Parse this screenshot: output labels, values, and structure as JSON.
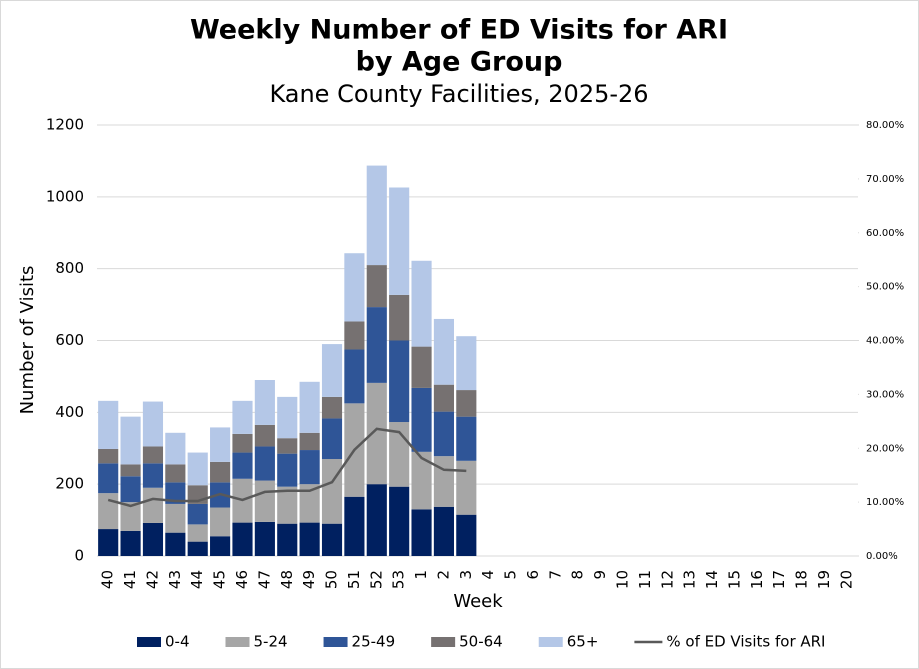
{
  "chart_data": {
    "type": "bar",
    "stacked": true,
    "title": [
      "Weekly Number of ED Visits for ARI",
      "by Age Group"
    ],
    "subtitle": "Kane County Facilities, 2025-26",
    "x_label": "Week",
    "y_label": "Number of Visits",
    "categories": [
      "40",
      "41",
      "42",
      "43",
      "44",
      "45",
      "46",
      "47",
      "48",
      "49",
      "50",
      "51",
      "52",
      "53",
      "1",
      "2",
      "3",
      "4",
      "5",
      "6",
      "7",
      "8",
      "9",
      "10",
      "11",
      "12",
      "13",
      "14",
      "15",
      "16",
      "17",
      "18",
      "19",
      "20"
    ],
    "ylim": [
      0,
      1200
    ],
    "yticks": [
      0,
      200,
      400,
      600,
      800,
      1000,
      1200
    ],
    "y2lim": [
      0,
      80
    ],
    "y2ticks": [
      {
        "value": 0,
        "label": "0.00%"
      },
      {
        "value": 10,
        "label": "10.00%"
      },
      {
        "value": 20,
        "label": "20.00%"
      },
      {
        "value": 30,
        "label": "30.00%"
      },
      {
        "value": 40,
        "label": "40.00%"
      },
      {
        "value": 50,
        "label": "50.00%"
      },
      {
        "value": 60,
        "label": "60.00%"
      },
      {
        "value": 70,
        "label": "70.00%"
      },
      {
        "value": 80,
        "label": "80.00%"
      }
    ],
    "grid": true,
    "legend": "bottom",
    "series": [
      {
        "name": "0-4",
        "color": "#002060",
        "values": [
          75,
          70,
          92,
          65,
          40,
          55,
          93,
          95,
          90,
          93,
          90,
          165,
          200,
          193,
          130,
          137,
          115,
          null,
          null,
          null,
          null,
          null,
          null,
          null,
          null,
          null,
          null,
          null,
          null,
          null,
          null,
          null,
          null,
          null
        ]
      },
      {
        "name": "5-24",
        "color": "#a6a6a6",
        "values": [
          100,
          80,
          98,
          80,
          48,
          80,
          122,
          115,
          103,
          107,
          180,
          260,
          282,
          180,
          160,
          141,
          150,
          null,
          null,
          null,
          null,
          null,
          null,
          null,
          null,
          null,
          null,
          null,
          null,
          null,
          null,
          null,
          null,
          null
        ]
      },
      {
        "name": "25-49",
        "color": "#2f5597",
        "values": [
          83,
          72,
          68,
          60,
          57,
          70,
          73,
          95,
          92,
          95,
          113,
          150,
          211,
          227,
          178,
          124,
          123,
          null,
          null,
          null,
          null,
          null,
          null,
          null,
          null,
          null,
          null,
          null,
          null,
          null,
          null,
          null,
          null,
          null
        ]
      },
      {
        "name": "50-64",
        "color": "#767171",
        "values": [
          40,
          33,
          47,
          50,
          52,
          57,
          52,
          60,
          43,
          48,
          60,
          78,
          117,
          127,
          115,
          75,
          74,
          null,
          null,
          null,
          null,
          null,
          null,
          null,
          null,
          null,
          null,
          null,
          null,
          null,
          null,
          null,
          null,
          null
        ]
      },
      {
        "name": "65+",
        "color": "#b4c7e7",
        "values": [
          134,
          133,
          125,
          88,
          91,
          96,
          92,
          125,
          115,
          142,
          147,
          190,
          277,
          299,
          239,
          183,
          150,
          null,
          null,
          null,
          null,
          null,
          null,
          null,
          null,
          null,
          null,
          null,
          null,
          null,
          null,
          null,
          null,
          null
        ]
      },
      {
        "name": "% of ED Visits for ARI",
        "type": "line",
        "axis": "y2",
        "color": "#595959",
        "values": [
          10.4,
          9.3,
          10.6,
          10.2,
          10.2,
          11.5,
          10.4,
          11.9,
          12.1,
          12.1,
          13.7,
          19.7,
          23.6,
          23.0,
          18.2,
          16.0,
          15.8,
          null,
          null,
          null,
          null,
          null,
          null,
          null,
          null,
          null,
          null,
          null,
          null,
          null,
          null,
          null,
          null,
          null
        ]
      }
    ]
  }
}
